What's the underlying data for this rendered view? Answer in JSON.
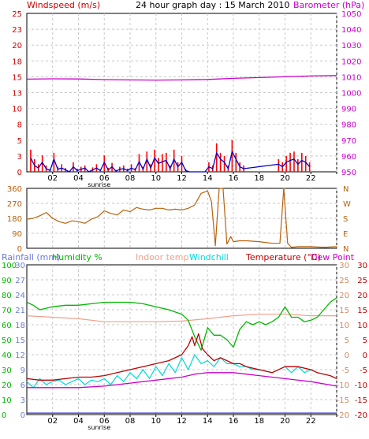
{
  "colors": {
    "wind_series": "#0000cc",
    "gust_series": "#ff0000",
    "barometer": "#cc00cc",
    "wind_direction": "#b8620c",
    "rainfall": "#6a7cd8",
    "humidity": "#00b800",
    "indoor_temp": "#f0a08a",
    "windchill": "#00d8d8",
    "temperature": "#c00000",
    "dew_point": "#cc00cc",
    "grid": "#c8c8c8",
    "frame": "#000000",
    "axis_blue": "#2a2ad0"
  },
  "chart_data": [
    {
      "type": "line",
      "title": "24 hour graph day : 15 March 2010",
      "y1label": "Windspeed (m/s)",
      "y2label": "Barometer (hPa)",
      "x_ticks": [
        "02",
        "04",
        "06",
        "08",
        "10",
        "12",
        "14",
        "16",
        "18",
        "20",
        "22",
        ""
      ],
      "sunrise_label": "sunrise",
      "y1_ticks": [
        "0",
        "3",
        "5",
        "8",
        "10",
        "13",
        "15",
        "18",
        "20",
        "23",
        "25"
      ],
      "y2_ticks": [
        "950",
        "960",
        "970",
        "980",
        "990",
        "1000",
        "1010",
        "1020",
        "1030",
        "1040",
        "1050"
      ],
      "y1lim": [
        0,
        25
      ],
      "y2lim": [
        950,
        1050
      ],
      "xlim": [
        0,
        24
      ],
      "grid": true,
      "series": [
        {
          "name": "Barometer (hPa)",
          "axis": "y2",
          "x": [
            0,
            2,
            4,
            6,
            8,
            10,
            12,
            14,
            16,
            18,
            20,
            22,
            24
          ],
          "values": [
            1008.5,
            1008.7,
            1008.6,
            1008.2,
            1008.0,
            1007.9,
            1008.0,
            1008.3,
            1009.0,
            1009.5,
            1010.0,
            1010.5,
            1010.8
          ]
        },
        {
          "name": "Gust (m/s)",
          "axis": "y1",
          "x": [
            0.3,
            0.6,
            0.9,
            1.2,
            1.5,
            1.8,
            2.1,
            2.4,
            2.7,
            3.0,
            3.3,
            3.6,
            3.9,
            4.2,
            4.5,
            4.8,
            5.1,
            5.4,
            5.7,
            6.0,
            6.3,
            6.6,
            6.9,
            7.2,
            7.5,
            7.8,
            8.1,
            8.4,
            8.7,
            9.0,
            9.3,
            9.6,
            9.9,
            10.2,
            10.5,
            10.8,
            11.1,
            11.4,
            11.7,
            12.0,
            12.3,
            12.6,
            12.9,
            13.2,
            13.5,
            13.8,
            14.1,
            14.4,
            14.7,
            15.0,
            15.3,
            15.6,
            15.9,
            16.2,
            16.5,
            16.8,
            19.5,
            19.8,
            20.1,
            20.4,
            20.7,
            21.0,
            21.3,
            21.6,
            21.9
          ],
          "values": [
            3.5,
            2.0,
            1.2,
            2.6,
            1.0,
            0.5,
            3.0,
            0.8,
            1.2,
            0.6,
            0.0,
            1.5,
            0.5,
            0.8,
            1.0,
            0.0,
            0.7,
            1.2,
            0.4,
            2.6,
            0.6,
            1.4,
            0.3,
            0.8,
            1.0,
            0.5,
            1.2,
            0.6,
            2.8,
            0.8,
            3.2,
            1.2,
            3.5,
            2.2,
            2.8,
            3.0,
            1.0,
            3.5,
            1.5,
            2.5,
            0.5,
            0.0,
            0.0,
            0.0,
            0.0,
            0.0,
            1.5,
            1.0,
            4.5,
            3.0,
            2.5,
            1.0,
            5.0,
            3.0,
            1.5,
            1.0,
            2.0,
            1.5,
            2.5,
            3.0,
            3.2,
            2.0,
            3.0,
            2.5,
            1.5
          ]
        },
        {
          "name": "Windspeed (m/s)",
          "axis": "y1",
          "x": [
            0.3,
            0.6,
            0.9,
            1.2,
            1.5,
            1.8,
            2.1,
            2.4,
            2.7,
            3.0,
            3.3,
            3.6,
            3.9,
            4.2,
            4.5,
            4.8,
            5.1,
            5.4,
            5.7,
            6.0,
            6.3,
            6.6,
            6.9,
            7.2,
            7.5,
            7.8,
            8.1,
            8.4,
            8.7,
            9.0,
            9.3,
            9.6,
            9.9,
            10.2,
            10.5,
            10.8,
            11.1,
            11.4,
            11.7,
            12.0,
            12.3,
            12.6,
            12.9,
            13.2,
            13.5,
            13.8,
            14.1,
            14.4,
            14.7,
            15.0,
            15.3,
            15.6,
            15.9,
            16.2,
            16.5,
            16.8,
            19.5,
            19.8,
            20.1,
            20.4,
            20.7,
            21.0,
            21.3,
            21.6,
            21.9
          ],
          "values": [
            2.2,
            1.0,
            0.6,
            1.5,
            0.5,
            0.2,
            2.0,
            0.4,
            0.6,
            0.3,
            0.0,
            0.8,
            0.2,
            0.4,
            0.6,
            0.0,
            0.3,
            0.6,
            0.2,
            1.5,
            0.3,
            0.8,
            0.1,
            0.4,
            0.5,
            0.2,
            0.6,
            0.3,
            1.6,
            0.4,
            2.0,
            0.6,
            2.2,
            1.3,
            1.6,
            1.8,
            0.5,
            2.0,
            0.8,
            1.5,
            0.2,
            0.0,
            0.0,
            0.0,
            0.0,
            0.0,
            0.8,
            0.5,
            3.0,
            2.0,
            1.5,
            0.5,
            3.2,
            2.0,
            0.8,
            0.5,
            1.2,
            0.8,
            1.5,
            1.8,
            2.0,
            1.2,
            1.8,
            1.5,
            0.8
          ]
        }
      ]
    },
    {
      "type": "line",
      "y1_ticks": [
        "0",
        "90",
        "180",
        "270",
        "360"
      ],
      "y2_ticks": [
        "N",
        "E",
        "S",
        "W",
        "N"
      ],
      "ylim": [
        0,
        360
      ],
      "xlim": [
        0,
        24
      ],
      "grid": true,
      "series": [
        {
          "name": "Wind direction",
          "x": [
            0,
            0.5,
            1.0,
            1.5,
            2.0,
            2.5,
            3.0,
            3.5,
            4.0,
            4.5,
            5.0,
            5.5,
            6.0,
            6.5,
            7.0,
            7.5,
            8.0,
            8.5,
            9.0,
            9.5,
            10.0,
            10.5,
            11.0,
            11.5,
            12.0,
            12.5,
            13.0,
            13.5,
            14.0,
            14.3,
            14.6,
            14.9,
            15.2,
            15.5,
            15.8,
            16.0,
            16.5,
            17.0,
            18.0,
            19.0,
            19.6,
            19.9,
            20.2,
            20.5,
            21.0,
            22.0,
            23.0,
            24.0
          ],
          "values": [
            175,
            180,
            195,
            215,
            180,
            160,
            150,
            165,
            160,
            150,
            175,
            190,
            225,
            210,
            200,
            230,
            220,
            245,
            235,
            230,
            240,
            240,
            230,
            235,
            230,
            240,
            260,
            330,
            345,
            280,
            15,
            360,
            360,
            25,
            70,
            40,
            45,
            45,
            40,
            30,
            30,
            360,
            30,
            5,
            10,
            10,
            5,
            10
          ]
        }
      ]
    },
    {
      "type": "line",
      "legend": [
        "Rainfall (mm)",
        "Humidity %",
        "Indoor temp",
        "Windchill",
        "Temperature (°C)",
        "Dew Point"
      ],
      "x_ticks": [
        "02",
        "04",
        "06",
        "08",
        "10",
        "12",
        "14",
        "16",
        "18",
        "20",
        "22",
        ""
      ],
      "sunrise_label": "sunrise",
      "rain_ticks": [
        "0",
        "3",
        "6",
        "9",
        "12",
        "15",
        "18",
        "21",
        "24",
        "27",
        "30"
      ],
      "humidity_ticks": [
        "0",
        "10",
        "20",
        "30",
        "40",
        "50",
        "60",
        "70",
        "80",
        "90",
        "100"
      ],
      "temp_ticks_inner": [
        "-20",
        "-15",
        "-10",
        "-5",
        "0",
        "5",
        "10",
        "15",
        "20",
        "25",
        "30"
      ],
      "temp_ticks_outer": [
        "-20",
        "-15",
        "-10",
        "-5",
        "0",
        "5",
        "10",
        "15",
        "20",
        "25",
        "30"
      ],
      "humidity_lim": [
        0,
        100
      ],
      "temp_lim": [
        -20,
        30
      ],
      "xlim": [
        0,
        24
      ],
      "grid": true,
      "series": [
        {
          "name": "Humidity %",
          "axis": "humidity",
          "x": [
            0,
            0.5,
            1.0,
            1.5,
            2,
            3,
            4,
            5,
            6,
            7,
            8,
            9,
            10,
            11,
            12,
            12.5,
            13,
            13.5,
            14,
            14.5,
            15,
            15.5,
            16,
            16.5,
            17,
            17.5,
            18,
            18.5,
            19,
            19.5,
            20,
            20.5,
            21,
            21.5,
            22,
            22.5,
            23,
            23.5,
            24
          ],
          "values": [
            75,
            73,
            70,
            71,
            72,
            73,
            73,
            74,
            75,
            75,
            75,
            74,
            72,
            70,
            67,
            63,
            52,
            43,
            58,
            53,
            53,
            50,
            45,
            57,
            62,
            60,
            62,
            60,
            62,
            65,
            72,
            65,
            65,
            62,
            63,
            65,
            70,
            75,
            78
          ]
        },
        {
          "name": "Indoor temp",
          "axis": "temp",
          "x": [
            0,
            2,
            4,
            6,
            8,
            10,
            12,
            14,
            16,
            18,
            20,
            22,
            24
          ],
          "values": [
            13,
            12.5,
            12,
            11,
            11,
            11,
            11.2,
            12,
            13,
            13.5,
            13.5,
            13,
            13
          ]
        },
        {
          "name": "Temperature (°C)",
          "axis": "temp",
          "x": [
            0,
            1,
            2,
            3,
            4,
            5,
            6,
            7,
            8,
            9,
            10,
            11,
            12,
            12.5,
            12.8,
            13,
            13.3,
            13.6,
            14,
            14.5,
            15,
            15.5,
            16,
            16.5,
            17,
            18,
            19,
            20,
            21,
            22,
            22.5,
            23,
            23.5,
            24
          ],
          "values": [
            -8,
            -8.5,
            -8.5,
            -8,
            -7.5,
            -7.5,
            -7,
            -6,
            -5,
            -4,
            -3,
            -2,
            0,
            3,
            6,
            3,
            7,
            2,
            0,
            -2,
            -1,
            -2,
            -3,
            -3,
            -4,
            -5,
            -6,
            -4,
            -4,
            -5,
            -6,
            -6.5,
            -7,
            -8
          ]
        },
        {
          "name": "Windchill",
          "axis": "temp",
          "x": [
            0,
            0.5,
            1,
            1.5,
            2,
            2.5,
            3,
            3.5,
            4,
            4.5,
            5,
            5.5,
            6,
            6.5,
            7,
            7.5,
            8,
            8.5,
            9,
            9.5,
            10,
            10.5,
            11,
            11.5,
            12,
            12.5,
            13,
            13.5,
            14,
            14.5,
            15,
            15.5,
            16,
            16.5,
            17,
            17.5,
            18,
            19,
            19.5,
            20,
            20.5,
            21,
            21.5,
            22
          ],
          "values": [
            -9,
            -11,
            -8,
            -10,
            -9,
            -8.5,
            -10,
            -9,
            -8,
            -10,
            -8.5,
            -9,
            -8,
            -10,
            -7,
            -9,
            -6,
            -8,
            -5,
            -8,
            -4,
            -7,
            -3,
            -6,
            -1,
            -5,
            0,
            -3,
            -2,
            -4,
            -1,
            -3,
            -3,
            -4,
            -4,
            -5,
            -5,
            -6,
            -5,
            -4,
            -6,
            -4,
            -6,
            -5
          ]
        },
        {
          "name": "Dew Point",
          "axis": "temp",
          "x": [
            0,
            2,
            4,
            6,
            8,
            10,
            12,
            13,
            14,
            15,
            16,
            17,
            18,
            20,
            22,
            24
          ],
          "values": [
            -11,
            -11,
            -11,
            -10.5,
            -9.5,
            -8.5,
            -7.5,
            -6.5,
            -6,
            -6,
            -6,
            -6.5,
            -7,
            -8,
            -9,
            -10.5
          ]
        },
        {
          "name": "Rainfall (mm)",
          "axis": "rain",
          "x": [
            0,
            24
          ],
          "values": [
            0,
            0
          ]
        }
      ]
    }
  ]
}
